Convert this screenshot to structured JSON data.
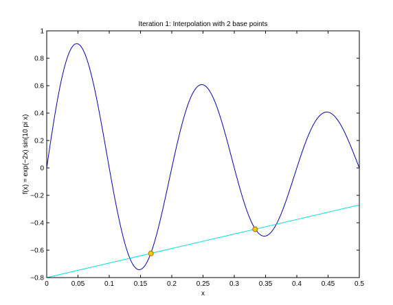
{
  "chart_data": {
    "type": "line",
    "title": "Iteration 1: Interpolation with 2 base points",
    "xlabel": "x",
    "ylabel": "f(x) = exp(−2x) sin(10 pi x)",
    "xlim": [
      0,
      0.5
    ],
    "ylim": [
      -0.8,
      1
    ],
    "xticks": [
      0,
      0.05,
      0.1,
      0.15,
      0.2,
      0.25,
      0.3,
      0.35,
      0.4,
      0.45,
      0.5
    ],
    "xtick_labels": [
      "0",
      "0.05",
      "0.1",
      "0.15",
      "0.2",
      "0.25",
      "0.3",
      "0.35",
      "0.4",
      "0.45",
      "0.5"
    ],
    "yticks": [
      -0.8,
      -0.6,
      -0.4,
      -0.2,
      0,
      0.2,
      0.4,
      0.6,
      0.8,
      1
    ],
    "ytick_labels": [
      "−0.8",
      "−0.6",
      "−0.4",
      "−0.2",
      "0",
      "0.2",
      "0.4",
      "0.6",
      "0.8",
      "1"
    ],
    "grid": false,
    "legend": "none",
    "series": [
      {
        "function": "exp(-2x) sin(10 pi x)",
        "color": "#0000aa",
        "samples": 400
      },
      {
        "x": [
          0,
          0.5
        ],
        "y": [
          -0.8,
          -0.27
        ],
        "color": "#00dddd"
      }
    ],
    "points": {
      "x": [
        0.1667,
        0.3333
      ],
      "y": [
        -0.6237,
        -0.4472
      ],
      "fill": "#ffcc00",
      "stroke": "#aa6600"
    }
  }
}
